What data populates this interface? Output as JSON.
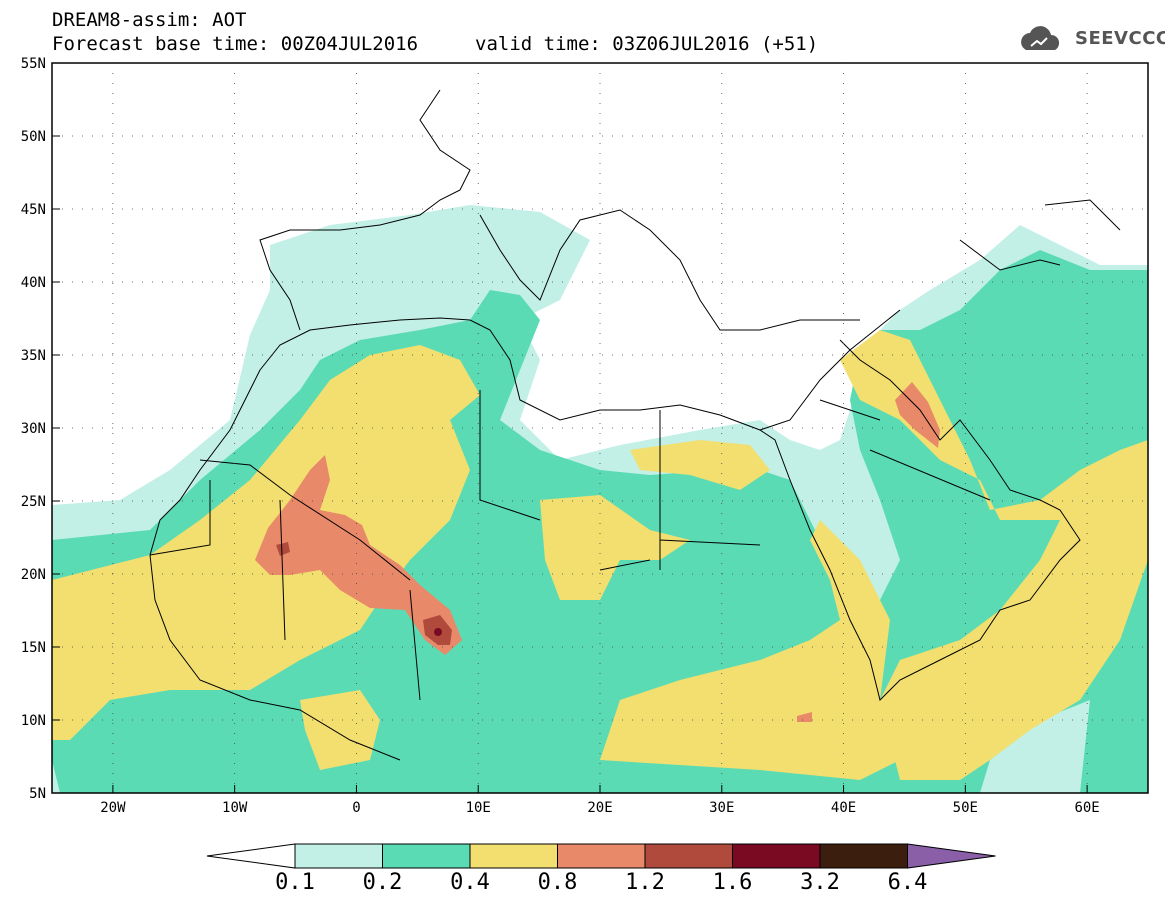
{
  "header": {
    "title": "DREAM8-assim: AOT",
    "forecast": "Forecast base time: 00Z04JUL2016",
    "valid": "valid time: 03Z06JUL2016 (+51)"
  },
  "logo": {
    "text": "SEEVCCC",
    "icon": "cloud-icon"
  },
  "map": {
    "lon_range": [
      -25,
      65
    ],
    "lat_range": [
      5,
      55
    ],
    "lat_labels": [
      "55N",
      "50N",
      "45N",
      "40N",
      "35N",
      "30N",
      "25N",
      "20N",
      "15N",
      "10N",
      "5N"
    ],
    "lon_labels": [
      "20W",
      "10W",
      "0",
      "10E",
      "20E",
      "30E",
      "40E",
      "50E",
      "60E"
    ]
  },
  "colorbar": {
    "levels": [
      "0.1",
      "0.2",
      "0.4",
      "0.8",
      "1.2",
      "1.6",
      "3.2",
      "6.4"
    ],
    "colors": [
      "#c2efe6",
      "#5adbb4",
      "#f2df6f",
      "#e8896a",
      "#b04a3c",
      "#7a0a22",
      "#3b1e0e",
      "#8a5fa8"
    ]
  }
}
